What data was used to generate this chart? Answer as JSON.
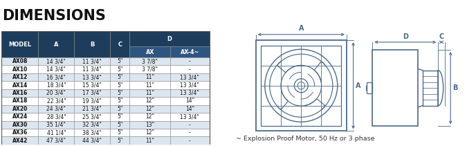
{
  "title": "DIMENSIONS",
  "header_bg": "#1e3d5c",
  "header_text": "#ffffff",
  "subheader_bg": "#2e5580",
  "row_alt_bg": "#dce6f0",
  "row_bg": "#ffffff",
  "border_color": "#5a7a9a",
  "columns": [
    "MODEL",
    "A",
    "B",
    "C",
    "AX",
    "AX-4~"
  ],
  "col_group_D": "D",
  "rows": [
    [
      "AX08",
      "14 3/4\"",
      "11 3/4\"",
      "5\"",
      "3 7/8\"",
      "-"
    ],
    [
      "AX10",
      "14 3/4\"",
      "11 3/4\"",
      "5\"",
      "3 7/8\"",
      "-"
    ],
    [
      "AX12",
      "16 3/4\"",
      "13 3/4\"",
      "5\"",
      "11\"",
      "13 3/4\""
    ],
    [
      "AX14",
      "18 3/4\"",
      "15 3/4\"",
      "5\"",
      "11\"",
      "13 3/4\""
    ],
    [
      "AX16",
      "20 3/4\"",
      "17 3/4\"",
      "5\"",
      "11\"",
      "13 3/4\""
    ],
    [
      "AX18",
      "22 3/4\"",
      "19 3/4\"",
      "5\"",
      "12\"",
      "14\""
    ],
    [
      "AX20",
      "24 3/4\"",
      "21 3/4\"",
      "5\"",
      "12\"",
      "14\""
    ],
    [
      "AX24",
      "28 3/4\"",
      "25 3/4\"",
      "5\"",
      "12\"",
      "13 3/4\""
    ],
    [
      "AX30",
      "35 1/4\"",
      "32 3/4\"",
      "5\"",
      "13\"",
      "-"
    ],
    [
      "AX36",
      "41 1/4\"",
      "38 3/4\"",
      "5\"",
      "12\"",
      "-"
    ],
    [
      "AX42",
      "47 3/4\"",
      "44 3/4\"",
      "5\"",
      "11\"",
      "-"
    ]
  ],
  "note": "~ Explosion Proof Motor, 50 Hz or 3 phase",
  "dc": "#4a6a8a",
  "bg_color": "#ffffff",
  "title_color": "#111111",
  "blue_line": "#5599cc"
}
